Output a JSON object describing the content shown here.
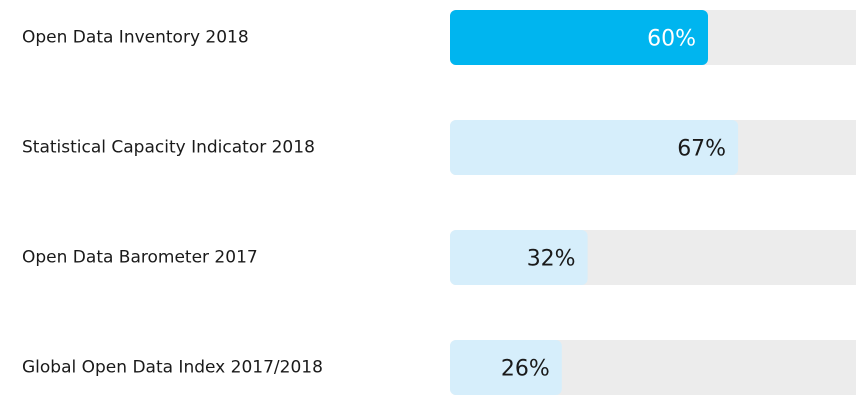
{
  "chart_data": {
    "type": "hbar",
    "categories": [
      "Open Data Inventory 2018",
      "Statistical Capacity Indicator 2018",
      "Open Data Barometer 2017",
      "Global Open Data Index 2017/2018"
    ],
    "values": [
      60,
      67,
      32,
      26
    ],
    "value_labels": [
      "60%",
      "67%",
      "32%",
      "26%"
    ],
    "colors": [
      "#00b5ef",
      "#d6eefb",
      "#d6eefb",
      "#d6eefb"
    ],
    "label_colors": [
      "#ffffff",
      "#1a1a1a",
      "#1a1a1a",
      "#1a1a1a"
    ],
    "track_color": "#ececec",
    "xlim": [
      0,
      100
    ]
  }
}
